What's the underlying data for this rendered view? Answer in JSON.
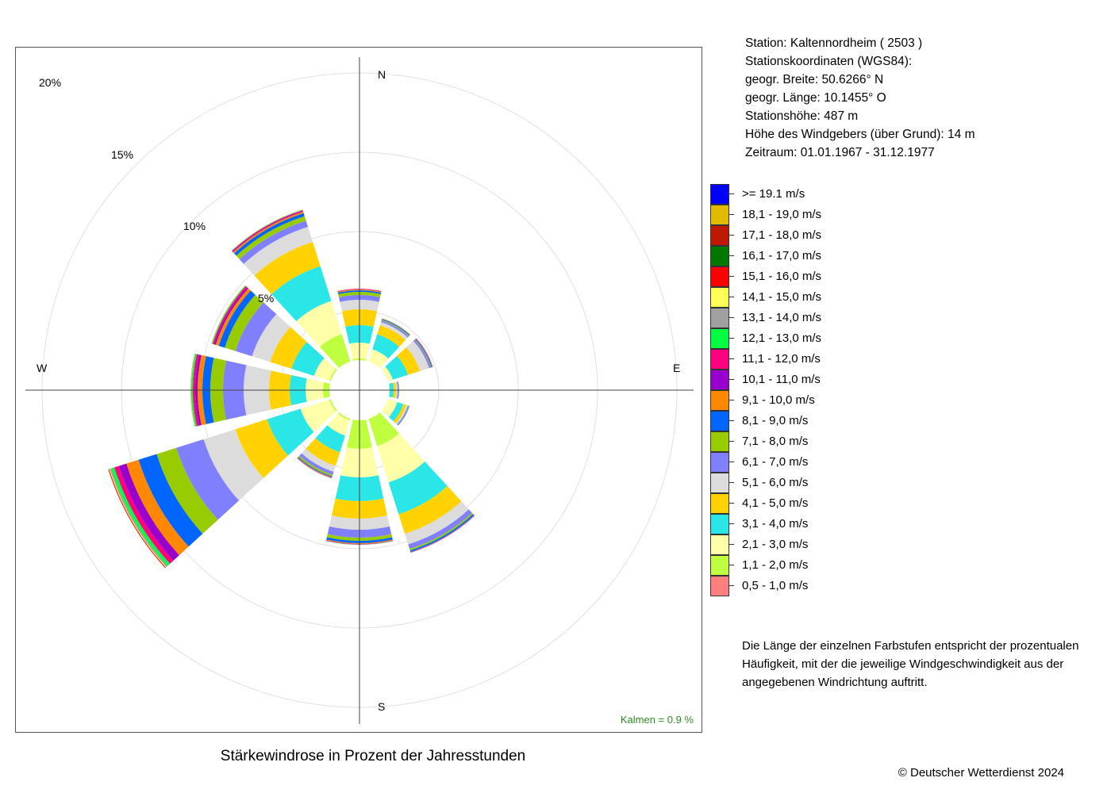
{
  "info": {
    "lines": [
      "Station:  Kaltennordheim  ( 2503 )",
      "Stationskoordinaten (WGS84):",
      "geogr. Breite: 50.6266° N",
      "geogr. Länge: 10.1455° O",
      "Stationshöhe: 487 m",
      "Höhe des Windgebers (über Grund): 14 m",
      "Zeitraum: 01.01.1967 - 31.12.1977"
    ]
  },
  "caption": "Stärkewindrose in Prozent der Jahresstunden",
  "copyright": "© Deutscher Wetterdienst  2024",
  "note": "Die Länge der einzelnen Farbstufen entspricht der prozentualen Häufigkeit, mit der die jeweilige Windgeschwindigkeit aus der angegebenen Windrichtung auftritt.",
  "calm_label": "Kalmen  =  0.9 %",
  "chart_data": {
    "type": "wind-rose",
    "calm_percent": 0.9,
    "rmax_percent": 21,
    "ring_labels": [
      "5%",
      "10%",
      "15%",
      "20%"
    ],
    "ring_values": [
      5,
      10,
      15,
      20
    ],
    "direction_labels": [
      "N",
      "E",
      "S",
      "W"
    ],
    "sector_centers_deg": [
      0,
      30,
      60,
      90,
      120,
      150,
      180,
      210,
      240,
      270,
      300,
      330
    ],
    "bins": [
      {
        "label": "0,5 - 1,0 m/s",
        "color": "#FF7F7F"
      },
      {
        "label": "1,1 - 2,0 m/s",
        "color": "#BFFF3F"
      },
      {
        "label": "2,1 - 3,0 m/s",
        "color": "#FFFFAA"
      },
      {
        "label": "3,1 - 4,0 m/s",
        "color": "#2AE6E6"
      },
      {
        "label": "4,1 - 5,0 m/s",
        "color": "#FFD200"
      },
      {
        "label": "5,1 - 6,0 m/s",
        "color": "#DCDCDC"
      },
      {
        "label": "6,1 - 7,0 m/s",
        "color": "#8080FF"
      },
      {
        "label": "7,1 - 8,0 m/s",
        "color": "#99CC00"
      },
      {
        "label": "8,1 - 9,0 m/s",
        "color": "#0066FF"
      },
      {
        "label": "9,1 - 10,0 m/s",
        "color": "#FF8800"
      },
      {
        "label": "10,1 - 11,0 m/s",
        "color": "#9900CC"
      },
      {
        "label": "11,1 - 12,0 m/s",
        "color": "#FF0080"
      },
      {
        "label": "12,1 - 13,0 m/s",
        "color": "#00FF40"
      },
      {
        "label": "13,1 - 14,0 m/s",
        "color": "#A0A0A0"
      },
      {
        "label": "14,1 - 15,0 m/s",
        "color": "#FFFF55"
      },
      {
        "label": "15,1 - 16,0 m/s",
        "color": "#FF0000"
      },
      {
        "label": "16,1 - 17,0 m/s",
        "color": "#007700"
      },
      {
        "label": "17,1 - 18,0 m/s",
        "color": "#C01800"
      },
      {
        "label": "18,1 - 19,0 m/s",
        "color": "#E0BB00"
      },
      {
        "label": ">= 19.1 m/s",
        "color": "#0000FF"
      }
    ],
    "cumulative_percent_by_sector": [
      [
        1.0,
        2.0,
        3.0,
        4.1,
        5.1,
        5.7,
        6.0,
        6.2,
        6.3,
        6.36,
        6.38,
        6.4,
        6.4,
        6.4,
        6.4,
        6.4,
        6.4,
        6.4,
        6.4,
        6.4
      ],
      [
        0.9,
        1.7,
        2.7,
        3.7,
        4.3,
        4.5,
        4.6,
        4.65,
        4.7,
        4.72,
        4.73,
        4.74,
        4.75,
        4.75,
        4.75,
        4.75,
        4.75,
        4.75,
        4.75,
        4.75
      ],
      [
        0.9,
        1.6,
        2.2,
        3.2,
        4.0,
        4.6,
        4.7,
        4.75,
        4.8,
        4.82,
        4.83,
        4.85,
        4.85,
        4.85,
        4.85,
        4.85,
        4.85,
        4.85,
        4.85,
        4.85
      ],
      [
        0.9,
        1.3,
        1.8,
        2.15,
        2.3,
        2.4,
        2.45,
        2.48,
        2.5,
        2.5,
        2.5,
        2.5,
        2.5,
        2.5,
        2.5,
        2.5,
        2.5,
        2.5,
        2.5,
        2.5
      ],
      [
        1.0,
        1.9,
        2.5,
        2.9,
        3.1,
        3.2,
        3.25,
        3.27,
        3.3,
        3.3,
        3.3,
        3.3,
        3.3,
        3.3,
        3.3,
        3.3,
        3.3,
        3.3,
        3.3,
        3.3
      ],
      [
        1.8,
        3.7,
        6.1,
        8.2,
        9.5,
        10.2,
        10.5,
        10.6,
        10.7,
        10.72,
        10.74,
        10.75,
        10.75,
        10.75,
        10.75,
        10.75,
        10.75,
        10.75,
        10.75,
        10.75
      ],
      [
        1.8,
        3.7,
        5.5,
        7.0,
        8.1,
        8.8,
        9.3,
        9.5,
        9.65,
        9.7,
        9.72,
        9.74,
        9.75,
        9.75,
        9.75,
        9.75,
        9.75,
        9.75,
        9.75,
        9.75
      ],
      [
        1.0,
        2.0,
        3.0,
        4.1,
        5.0,
        5.4,
        5.6,
        5.7,
        5.75,
        5.78,
        5.8,
        5.82,
        5.83,
        5.83,
        5.83,
        5.83,
        5.83,
        5.83,
        5.83,
        5.83
      ],
      [
        1.0,
        2.0,
        3.9,
        6.1,
        8.2,
        10.3,
        12.1,
        13.4,
        14.6,
        15.4,
        15.9,
        16.2,
        16.4,
        16.5,
        16.55,
        16.6,
        16.6,
        16.6,
        16.6,
        16.6
      ],
      [
        1.1,
        2.3,
        3.4,
        4.4,
        5.7,
        7.3,
        8.6,
        9.4,
        9.9,
        10.2,
        10.35,
        10.5,
        10.6,
        10.62,
        10.64,
        10.65,
        10.65,
        10.65,
        10.65,
        10.65
      ],
      [
        1.0,
        2.0,
        3.0,
        4.5,
        5.9,
        7.1,
        8.2,
        8.9,
        9.3,
        9.5,
        9.6,
        9.7,
        9.75,
        9.78,
        9.8,
        9.8,
        9.8,
        9.8,
        9.8,
        9.8
      ],
      [
        1.6,
        3.7,
        5.9,
        8.2,
        9.8,
        10.8,
        11.2,
        11.5,
        11.7,
        11.8,
        11.85,
        11.9,
        11.92,
        11.94,
        11.95,
        11.95,
        11.95,
        11.95,
        11.95,
        11.95
      ]
    ]
  }
}
